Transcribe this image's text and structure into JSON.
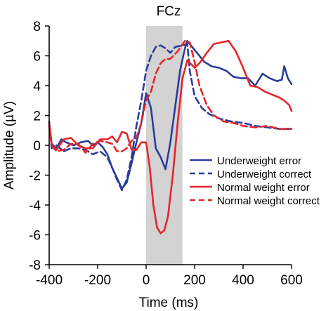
{
  "chart_data": {
    "type": "line",
    "title": "FCz",
    "xlabel": "Time (ms)",
    "ylabel": "Amplitude (µV)",
    "xlim": [
      -400,
      600
    ],
    "ylim": [
      -8,
      8
    ],
    "x_ticks": [
      -400,
      -200,
      0,
      200,
      400,
      600
    ],
    "y_ticks": [
      -8,
      -6,
      -4,
      -2,
      0,
      2,
      4,
      6,
      8
    ],
    "grid": false,
    "legend_position": "right",
    "shaded_region": {
      "x_start": 0,
      "x_end": 150,
      "color": "#d3d3d3"
    },
    "series": [
      {
        "name": "Underweight error",
        "color": "#2b3c9a",
        "dash": "solid",
        "points": [
          [
            -400,
            1.6
          ],
          [
            -390,
            0.1
          ],
          [
            -370,
            -0.2
          ],
          [
            -350,
            0.4
          ],
          [
            -330,
            0.2
          ],
          [
            -300,
            0.0
          ],
          [
            -270,
            0.2
          ],
          [
            -240,
            0.3
          ],
          [
            -220,
            0.0
          ],
          [
            -200,
            0.2
          ],
          [
            -180,
            -0.1
          ],
          [
            -160,
            -0.6
          ],
          [
            -140,
            -1.5
          ],
          [
            -120,
            -2.2
          ],
          [
            -100,
            -2.9
          ],
          [
            -80,
            -2.5
          ],
          [
            -60,
            -1.2
          ],
          [
            -40,
            0.2
          ],
          [
            -20,
            1.5
          ],
          [
            0,
            3.5
          ],
          [
            20,
            2.5
          ],
          [
            40,
            -0.2
          ],
          [
            60,
            -0.8
          ],
          [
            80,
            -1.6
          ],
          [
            100,
            0.2
          ],
          [
            120,
            2.6
          ],
          [
            140,
            5.0
          ],
          [
            160,
            6.5
          ],
          [
            170,
            7.0
          ],
          [
            190,
            6.6
          ],
          [
            210,
            6.2
          ],
          [
            240,
            5.6
          ],
          [
            270,
            5.3
          ],
          [
            300,
            5.2
          ],
          [
            330,
            5.0
          ],
          [
            360,
            4.6
          ],
          [
            390,
            4.5
          ],
          [
            420,
            4.5
          ],
          [
            450,
            4.0
          ],
          [
            480,
            4.8
          ],
          [
            510,
            4.5
          ],
          [
            540,
            4.3
          ],
          [
            560,
            4.4
          ],
          [
            570,
            5.3
          ],
          [
            585,
            4.5
          ],
          [
            600,
            4.1
          ]
        ]
      },
      {
        "name": "Underweight correct",
        "color": "#2b3c9a",
        "dash": "dashed",
        "points": [
          [
            -400,
            1.4
          ],
          [
            -390,
            -0.2
          ],
          [
            -370,
            0.0
          ],
          [
            -340,
            -0.4
          ],
          [
            -310,
            -0.2
          ],
          [
            -280,
            -0.2
          ],
          [
            -250,
            -0.3
          ],
          [
            -220,
            -0.6
          ],
          [
            -190,
            -0.4
          ],
          [
            -160,
            -0.8
          ],
          [
            -140,
            -1.5
          ],
          [
            -120,
            -2.3
          ],
          [
            -100,
            -3.0
          ],
          [
            -80,
            -2.3
          ],
          [
            -60,
            -0.8
          ],
          [
            -40,
            1.3
          ],
          [
            -20,
            3.0
          ],
          [
            0,
            5.0
          ],
          [
            20,
            6.0
          ],
          [
            40,
            6.6
          ],
          [
            60,
            6.7
          ],
          [
            80,
            6.5
          ],
          [
            100,
            6.2
          ],
          [
            120,
            6.6
          ],
          [
            150,
            6.7
          ],
          [
            170,
            6.8
          ],
          [
            180,
            5.0
          ],
          [
            200,
            3.3
          ],
          [
            230,
            2.5
          ],
          [
            260,
            2.1
          ],
          [
            300,
            1.8
          ],
          [
            350,
            1.6
          ],
          [
            400,
            1.5
          ],
          [
            450,
            1.3
          ],
          [
            500,
            1.2
          ],
          [
            550,
            1.1
          ],
          [
            600,
            1.1
          ]
        ]
      },
      {
        "name": "Normal weight error",
        "color": "#e3262a",
        "dash": "solid",
        "points": [
          [
            -400,
            1.5
          ],
          [
            -390,
            0.0
          ],
          [
            -370,
            -0.3
          ],
          [
            -340,
            0.4
          ],
          [
            -310,
            0.5
          ],
          [
            -280,
            0.0
          ],
          [
            -250,
            -0.2
          ],
          [
            -220,
            -0.2
          ],
          [
            -190,
            0.4
          ],
          [
            -160,
            0.4
          ],
          [
            -140,
            0.6
          ],
          [
            -120,
            0.2
          ],
          [
            -100,
            0.9
          ],
          [
            -80,
            0.8
          ],
          [
            -60,
            -0.3
          ],
          [
            -40,
            -0.3
          ],
          [
            -20,
            0.2
          ],
          [
            0,
            0.2
          ],
          [
            15,
            -1.5
          ],
          [
            30,
            -4.0
          ],
          [
            45,
            -5.5
          ],
          [
            60,
            -5.9
          ],
          [
            75,
            -5.7
          ],
          [
            90,
            -4.8
          ],
          [
            110,
            -2.0
          ],
          [
            130,
            1.5
          ],
          [
            150,
            4.5
          ],
          [
            170,
            5.7
          ],
          [
            200,
            5.2
          ],
          [
            220,
            5.5
          ],
          [
            250,
            6.2
          ],
          [
            280,
            6.8
          ],
          [
            310,
            6.9
          ],
          [
            340,
            7.0
          ],
          [
            370,
            6.3
          ],
          [
            400,
            5.2
          ],
          [
            430,
            4.0
          ],
          [
            460,
            3.9
          ],
          [
            490,
            3.6
          ],
          [
            520,
            3.4
          ],
          [
            550,
            3.2
          ],
          [
            570,
            3.0
          ],
          [
            590,
            2.7
          ],
          [
            600,
            2.3
          ]
        ]
      },
      {
        "name": "Normal weight correct",
        "color": "#e3262a",
        "dash": "dashed",
        "points": [
          [
            -400,
            1.3
          ],
          [
            -390,
            0.0
          ],
          [
            -370,
            -0.4
          ],
          [
            -340,
            -0.3
          ],
          [
            -310,
            0.1
          ],
          [
            -280,
            0.1
          ],
          [
            -250,
            -0.5
          ],
          [
            -220,
            0.1
          ],
          [
            -190,
            0.3
          ],
          [
            -160,
            0.2
          ],
          [
            -140,
            0.1
          ],
          [
            -120,
            -0.4
          ],
          [
            -100,
            -0.4
          ],
          [
            -80,
            -0.2
          ],
          [
            -60,
            0.3
          ],
          [
            -40,
            0.5
          ],
          [
            -20,
            1.5
          ],
          [
            0,
            3.0
          ],
          [
            20,
            3.6
          ],
          [
            40,
            4.8
          ],
          [
            60,
            5.5
          ],
          [
            80,
            5.8
          ],
          [
            100,
            5.8
          ],
          [
            130,
            6.3
          ],
          [
            160,
            7.0
          ],
          [
            180,
            6.9
          ],
          [
            200,
            5.6
          ],
          [
            220,
            4.0
          ],
          [
            250,
            2.7
          ],
          [
            280,
            2.0
          ],
          [
            320,
            1.6
          ],
          [
            360,
            1.5
          ],
          [
            400,
            1.3
          ],
          [
            450,
            1.2
          ],
          [
            500,
            1.3
          ],
          [
            550,
            1.1
          ],
          [
            600,
            1.1
          ]
        ]
      }
    ]
  }
}
